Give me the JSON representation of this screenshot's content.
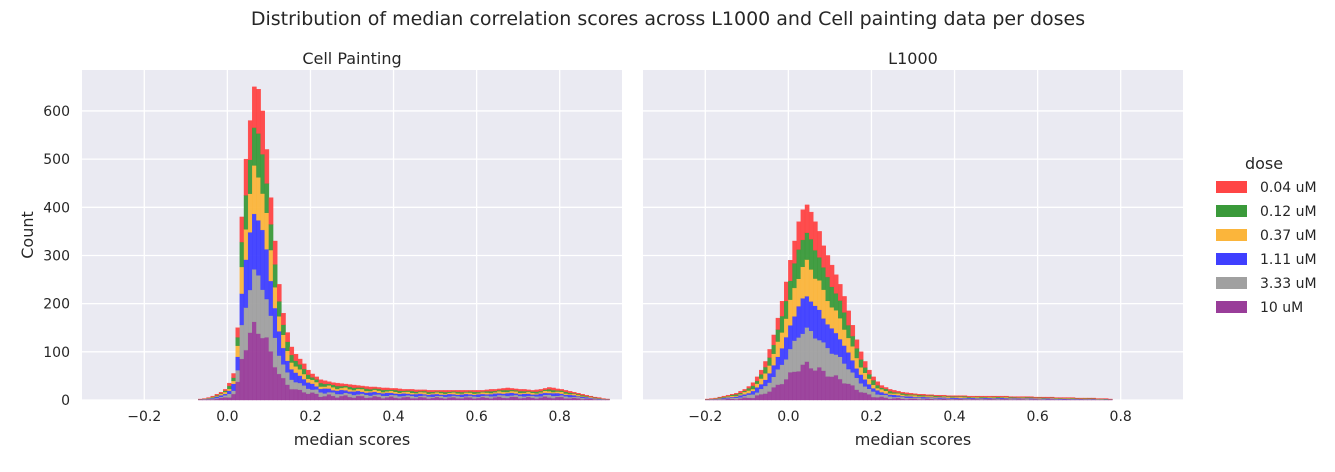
{
  "figure": {
    "title": "Distribution of median correlation scores across L1000 and Cell painting data per doses"
  },
  "legend": {
    "title": "dose",
    "placement": "right"
  },
  "chart_data": [
    {
      "type": "bar",
      "stacked": true,
      "title": "Cell Painting",
      "xlabel": "median scores",
      "ylabel": "Count",
      "xlim": [
        -0.35,
        0.95
      ],
      "ylim": [
        0,
        685
      ],
      "xticks": [
        -0.2,
        0.0,
        0.2,
        0.4,
        0.6,
        0.8
      ],
      "xtick_labels": [
        "−0.2",
        "0.0",
        "0.2",
        "0.4",
        "0.6",
        "0.8"
      ],
      "yticks": [
        0,
        100,
        200,
        300,
        400,
        500,
        600
      ],
      "grid": true,
      "series": [
        {
          "name": "0.04 uM",
          "color": "#ff4545"
        },
        {
          "name": "0.12 uM",
          "color": "#3a9a3a"
        },
        {
          "name": "0.37 uM",
          "color": "#fbb53b"
        },
        {
          "name": "1.11 uM",
          "color": "#3f3fff"
        },
        {
          "name": "3.33 uM",
          "color": "#a0a0a0"
        },
        {
          "name": "10 uM",
          "color": "#993d99"
        }
      ],
      "bin_width": 0.01,
      "bin_start": -0.07,
      "totals": [
        2,
        3,
        5,
        8,
        12,
        16,
        22,
        35,
        55,
        150,
        380,
        500,
        580,
        650,
        645,
        600,
        520,
        420,
        330,
        240,
        180,
        140,
        110,
        95,
        85,
        75,
        62,
        54,
        48,
        42,
        40,
        38,
        36,
        35,
        34,
        33,
        32,
        31,
        30,
        29,
        28,
        27,
        27,
        26,
        25,
        25,
        24,
        24,
        23,
        22,
        22,
        22,
        21,
        21,
        21,
        20,
        20,
        20,
        20,
        20,
        20,
        20,
        20,
        20,
        20,
        20,
        20,
        20,
        20,
        21,
        22,
        22,
        23,
        24,
        25,
        24,
        23,
        22,
        22,
        21,
        20,
        21,
        22,
        24,
        26,
        25,
        23,
        22,
        20,
        18,
        16,
        14,
        12,
        10,
        8,
        6,
        5,
        3,
        2
      ],
      "fractions": [
        0.14,
        0.13,
        0.14,
        0.19,
        0.17,
        0.23
      ]
    },
    {
      "type": "bar",
      "stacked": true,
      "title": "L1000",
      "xlabel": "median scores",
      "xlim": [
        -0.35,
        0.95
      ],
      "ylim": [
        0,
        685
      ],
      "xticks": [
        -0.2,
        0.0,
        0.2,
        0.4,
        0.6,
        0.8
      ],
      "xtick_labels": [
        "−0.2",
        "0.0",
        "0.2",
        "0.4",
        "0.6",
        "0.8"
      ],
      "yticks": [
        0,
        100,
        200,
        300,
        400,
        500,
        600
      ],
      "grid": true,
      "series": [
        {
          "name": "0.04 uM",
          "color": "#ff4545"
        },
        {
          "name": "0.12 uM",
          "color": "#3a9a3a"
        },
        {
          "name": "0.37 uM",
          "color": "#fbb53b"
        },
        {
          "name": "1.11 uM",
          "color": "#3f3fff"
        },
        {
          "name": "3.33 uM",
          "color": "#a0a0a0"
        },
        {
          "name": "10 uM",
          "color": "#993d99"
        }
      ],
      "bin_width": 0.01,
      "bin_start": -0.2,
      "totals": [
        2,
        3,
        4,
        6,
        8,
        10,
        12,
        14,
        18,
        22,
        28,
        36,
        48,
        62,
        80,
        105,
        135,
        170,
        205,
        245,
        290,
        330,
        370,
        395,
        405,
        390,
        370,
        350,
        320,
        300,
        280,
        260,
        240,
        215,
        185,
        155,
        125,
        100,
        80,
        62,
        48,
        38,
        30,
        26,
        22,
        20,
        18,
        16,
        15,
        14,
        13,
        12,
        12,
        11,
        11,
        10,
        10,
        10,
        9,
        9,
        9,
        9,
        9,
        8,
        8,
        8,
        8,
        8,
        8,
        8,
        8,
        8,
        8,
        7,
        7,
        7,
        7,
        7,
        7,
        6,
        6,
        6,
        6,
        6,
        5,
        5,
        5,
        5,
        5,
        4,
        4,
        4,
        4,
        4,
        3,
        3,
        3,
        2
      ],
      "fractions": [
        0.15,
        0.15,
        0.17,
        0.17,
        0.18,
        0.18
      ]
    }
  ]
}
